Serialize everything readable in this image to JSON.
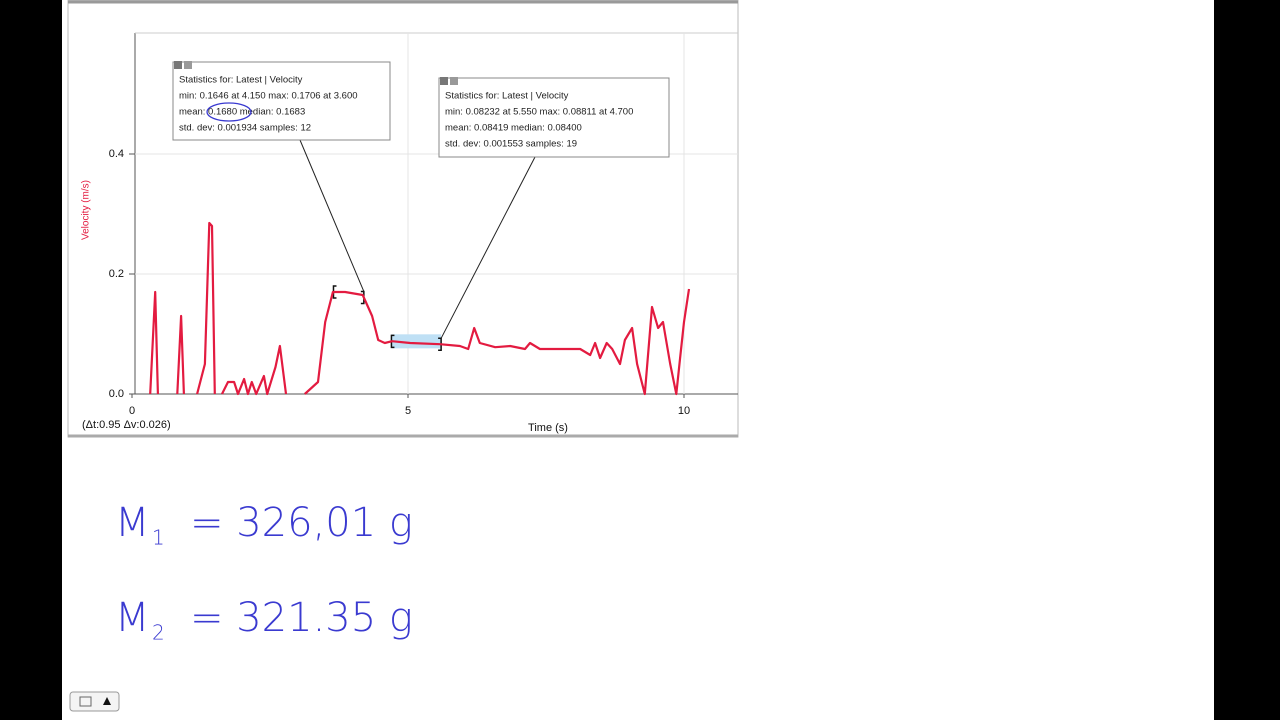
{
  "chart_data": {
    "type": "line",
    "y_label": "Velocity (m/s)",
    "x_label": "Time (s)",
    "readout": "(Δt:0.95 Δv:0.026)",
    "color": "#e31b40",
    "grid": true,
    "xlim": [
      0,
      11
    ],
    "ylim": [
      0,
      0.6
    ],
    "xticks": [
      0,
      5,
      10
    ],
    "yticks": [
      {
        "value": 0,
        "label": "0.0"
      },
      0.2,
      0.4
    ],
    "x": [
      0.33,
      0.42,
      0.47,
      null,
      0.82,
      0.89,
      0.94,
      null,
      1.18,
      1.32,
      1.4,
      1.45,
      1.5,
      null,
      1.63,
      1.74,
      1.85,
      1.92,
      2.03,
      2.1,
      2.17,
      2.25,
      2.39,
      2.45,
      2.6,
      2.68,
      2.79,
      null,
      3.13,
      3.37,
      3.5,
      3.64,
      3.86,
      4.18,
      4.35,
      4.46,
      4.58,
      4.71,
      5.04,
      5.58,
      5.94,
      6.09,
      6.2,
      6.3,
      6.58,
      6.85,
      7.12,
      7.21,
      7.39,
      7.75,
      8.12,
      8.3,
      8.39,
      8.48,
      8.6,
      8.7,
      8.84,
      8.93,
      9.06,
      9.15,
      9.29,
      9.42,
      9.53,
      9.62,
      9.75,
      9.86,
      9.93,
      10.0,
      10.09
    ],
    "values": [
      0,
      0.17,
      0,
      null,
      0,
      0.13,
      0,
      null,
      0,
      0.05,
      0.285,
      0.28,
      0,
      null,
      0,
      0.02,
      0.02,
      0,
      0.025,
      0,
      0.02,
      0,
      0.03,
      0,
      0.045,
      0.08,
      0,
      null,
      0,
      0.02,
      0.12,
      0.17,
      0.17,
      0.165,
      0.13,
      0.09,
      0.085,
      0.088,
      0.085,
      0.083,
      0.08,
      0.075,
      0.11,
      0.085,
      0.078,
      0.08,
      0.075,
      0.085,
      0.075,
      0.075,
      0.075,
      0.065,
      0.085,
      0.06,
      0.085,
      0.075,
      0.05,
      0.09,
      0.11,
      0.05,
      0,
      0.145,
      0.11,
      0.12,
      0.05,
      0,
      0.06,
      0.12,
      0.175
    ],
    "regions": [
      {
        "xlim": [
          3.65,
          4.2
        ],
        "highlight": false
      },
      {
        "xlim": [
          4.7,
          5.6
        ],
        "highlight": true
      }
    ],
    "annotations": [
      {
        "lines": [
          "Statistics for: Latest | Velocity",
          "min: 0.1646 at 4.150 max: 0.1706 at 3.600",
          "mean: 0.1680 median: 0.1683",
          "std. dev: 0.001934 samples: 12"
        ]
      },
      {
        "lines": [
          "Statistics for: Latest | Velocity",
          "min: 0.08232 at 5.550 max: 0.08811 at 4.700",
          "mean: 0.08419 median: 0.08400",
          "std. dev: 0.001553 samples: 19"
        ]
      }
    ]
  },
  "notes": [
    {
      "symbol": "M",
      "subscript": "1",
      "text": "= 326,01 g"
    },
    {
      "symbol": "M",
      "subscript": "2",
      "text": "= 321.35 g"
    }
  ]
}
